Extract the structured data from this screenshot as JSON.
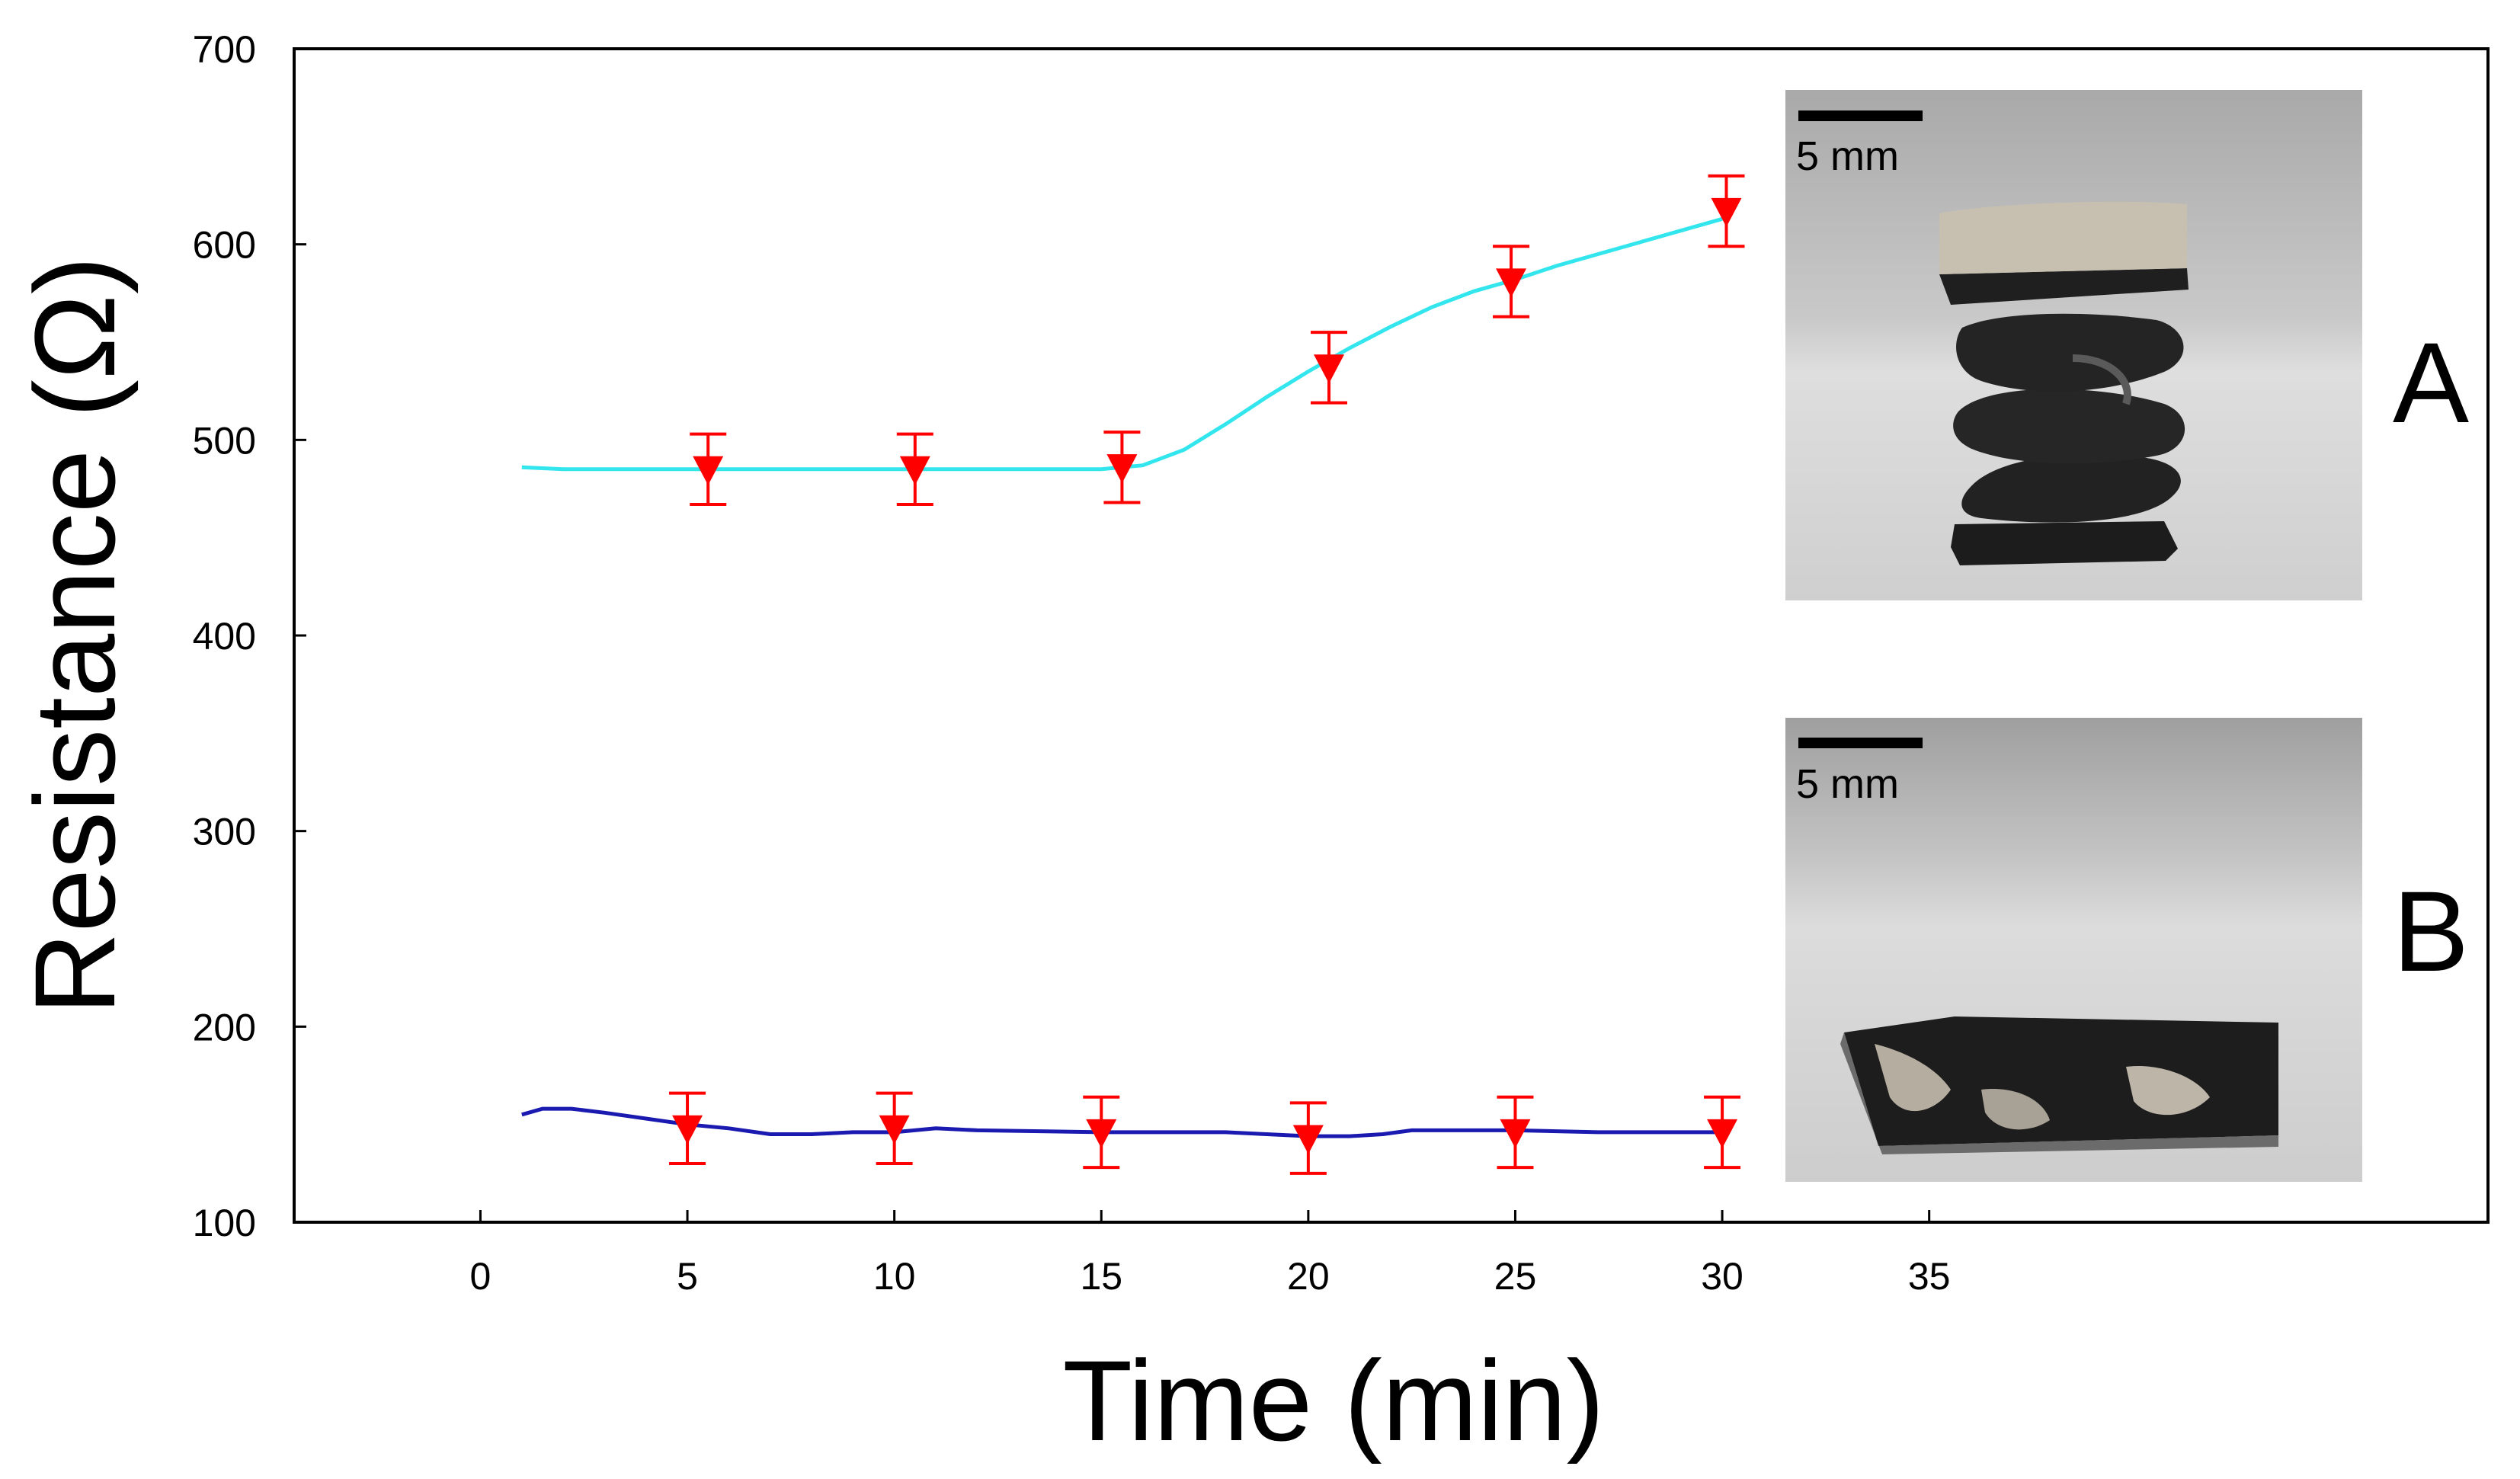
{
  "chart_data": {
    "type": "scatter",
    "xlabel": "Time (min)",
    "ylabel": "Resistance (Ω)",
    "xlim": [
      -4.5,
      48.5
    ],
    "ylim": [
      100,
      700
    ],
    "xticks": [
      0,
      5,
      10,
      15,
      20,
      25,
      30,
      35
    ],
    "yticks": [
      100,
      200,
      300,
      400,
      500,
      600,
      700
    ],
    "grid": false,
    "series": [
      {
        "label": "A",
        "marker": "down-triangle",
        "marker_color": "#ff0000",
        "line_color": "#33e6ee",
        "x": [
          5.5,
          10.5,
          15.5,
          20.5,
          24.9,
          30.1
        ],
        "y": [
          485,
          485,
          486,
          537,
          581,
          617
        ],
        "error": [
          18,
          18,
          18,
          18,
          18,
          18
        ],
        "curve": [
          [
            1,
            486
          ],
          [
            2,
            485
          ],
          [
            5,
            485
          ],
          [
            10,
            485
          ],
          [
            15,
            485
          ],
          [
            16,
            487
          ],
          [
            17,
            495
          ],
          [
            18,
            508
          ],
          [
            19,
            522
          ],
          [
            20,
            535
          ],
          [
            21,
            547
          ],
          [
            22,
            558
          ],
          [
            23,
            568
          ],
          [
            24,
            576
          ],
          [
            25,
            582
          ],
          [
            26,
            589
          ],
          [
            27,
            595
          ],
          [
            28,
            601
          ],
          [
            29,
            607
          ],
          [
            30,
            613
          ]
        ]
      },
      {
        "label": "B",
        "marker": "down-triangle",
        "marker_color": "#ff0000",
        "line_color": "#1a1ab0",
        "x": [
          5,
          10,
          15,
          20,
          25,
          30
        ],
        "y": [
          148,
          148,
          146,
          143,
          146,
          146
        ],
        "error": [
          18,
          18,
          18,
          18,
          18,
          18
        ],
        "curve": [
          [
            1,
            155
          ],
          [
            1.5,
            158
          ],
          [
            2.2,
            158
          ],
          [
            3,
            156
          ],
          [
            4,
            153
          ],
          [
            5,
            150
          ],
          [
            6,
            148
          ],
          [
            7,
            145
          ],
          [
            8,
            145
          ],
          [
            9,
            146
          ],
          [
            10,
            146
          ],
          [
            11,
            148
          ],
          [
            12,
            147
          ],
          [
            15,
            146
          ],
          [
            18,
            146
          ],
          [
            19,
            145
          ],
          [
            20,
            144
          ],
          [
            21,
            144
          ],
          [
            21.8,
            145
          ],
          [
            22.5,
            147
          ],
          [
            25,
            147
          ],
          [
            27,
            146
          ],
          [
            30,
            146
          ]
        ]
      }
    ]
  },
  "insets": [
    {
      "label": "A",
      "scale_bar_text": "5 mm",
      "subject": "helical-spring-sample"
    },
    {
      "label": "B",
      "scale_bar_text": "5 mm",
      "subject": "flat-sheet-sample"
    }
  ]
}
